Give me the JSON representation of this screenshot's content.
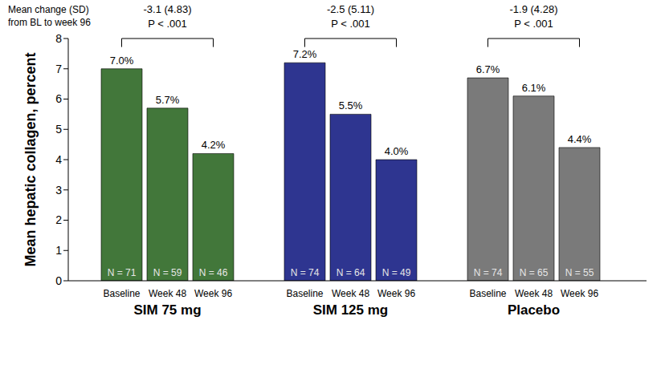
{
  "chart_data": {
    "type": "bar",
    "subtitle": [
      "Mean change (SD)",
      "from BL to week 96"
    ],
    "y_label": "Mean hepatic collagen, percent",
    "categories": [
      "Baseline",
      "Week 48",
      "Week 96"
    ],
    "series": [
      {
        "name": "SIM 75 mg",
        "color": "#42773a",
        "values": [
          7.0,
          5.7,
          4.2
        ],
        "value_labels": [
          "7.0%",
          "5.7%",
          "4.2%"
        ],
        "n_labels": [
          "N = 71",
          "N = 59",
          "N = 46"
        ],
        "change_label": "-3.1 (4.83)",
        "p_label": "P < .001"
      },
      {
        "name": "SIM 125 mg",
        "color": "#2e3590",
        "values": [
          7.2,
          5.5,
          4.0
        ],
        "value_labels": [
          "7.2%",
          "5.5%",
          "4.0%"
        ],
        "n_labels": [
          "N = 74",
          "N = 64",
          "N = 49"
        ],
        "change_label": "-2.5 (5.11)",
        "p_label": "P < .001"
      },
      {
        "name": "Placebo",
        "color": "#7a7a7a",
        "values": [
          6.7,
          6.1,
          4.4
        ],
        "value_labels": [
          "6.7%",
          "6.1%",
          "4.4%"
        ],
        "n_labels": [
          "N = 74",
          "N = 65",
          "N = 55"
        ],
        "change_label": "-1.9 (4.28)",
        "p_label": "P < .001"
      }
    ],
    "ylim": [
      0,
      8
    ],
    "yticks": [
      0,
      1,
      2,
      3,
      4,
      5,
      6,
      7,
      8
    ],
    "data_labels": true,
    "grid": false
  }
}
